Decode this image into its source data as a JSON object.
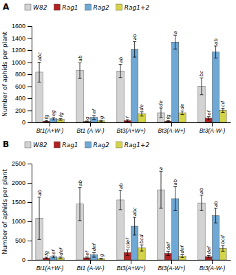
{
  "chart_data": [
    {
      "type": "bar",
      "title": "A",
      "y_label": "Number of aphids per plant",
      "categories": [
        "Bt1(A+W-)",
        "Bt1 (A-W-)",
        "Bt3(A+W+)",
        "Bt3(A-W+)",
        "Bt3(A-W-)"
      ],
      "series": [
        {
          "name": "W82",
          "color": "#d3d3d3",
          "values": [
            835,
            860,
            855,
            160,
            600
          ],
          "errors": [
            165,
            130,
            110,
            80,
            140
          ],
          "annotations": [
            "abc",
            "ab",
            "ab",
            "de",
            "bc"
          ]
        },
        {
          "name": "Rag1",
          "color": "#b22222",
          "values": [
            20,
            15,
            30,
            20,
            70
          ],
          "errors": [
            10,
            8,
            15,
            8,
            25
          ],
          "annotations": [
            "fg",
            "g",
            "f",
            "fg",
            "ef"
          ]
        },
        {
          "name": "Rag2",
          "color": "#6fa8d5",
          "values": [
            60,
            85,
            1215,
            1335,
            1170
          ],
          "errors": [
            20,
            35,
            130,
            115,
            100
          ],
          "annotations": [
            "eg",
            "ef",
            "ab",
            "a",
            "ab"
          ]
        },
        {
          "name": "Rag1+2",
          "color": "#d4d44a",
          "values": [
            50,
            25,
            140,
            160,
            200
          ],
          "errors": [
            15,
            10,
            35,
            30,
            35
          ],
          "annotations": [
            "fg",
            "g",
            "de",
            "de",
            "cd"
          ]
        }
      ],
      "ylim": [
        0,
        1600
      ],
      "yticks": [
        0,
        200,
        400,
        600,
        800,
        1000,
        1200,
        1400,
        1600
      ],
      "grid": false,
      "legend": "top"
    },
    {
      "type": "bar",
      "title": "B",
      "y_label": "Number of aphids per plant",
      "categories": [
        "Bt1(A+W-)",
        "Bt1 (A-W-)",
        "Bt3(A+W+)",
        "Bt3(A-W+)",
        "Bt3(A-W-)"
      ],
      "series": [
        {
          "name": "W82",
          "color": "#d3d3d3",
          "values": [
            1080,
            1450,
            1555,
            1820,
            1480
          ],
          "errors": [
            550,
            430,
            250,
            480,
            200
          ],
          "annotations": [
            "ab",
            "ab",
            "ab",
            "a",
            "ab"
          ]
        },
        {
          "name": "Rag1",
          "color": "#b22222",
          "values": [
            50,
            55,
            190,
            170,
            85
          ],
          "errors": [
            20,
            20,
            70,
            55,
            30
          ],
          "annotations": [
            "fg",
            "ef",
            "cdef",
            "def",
            "def"
          ]
        },
        {
          "name": "Rag2",
          "color": "#6fa8d5",
          "values": [
            80,
            130,
            875,
            1590,
            1150
          ],
          "errors": [
            25,
            60,
            230,
            310,
            190
          ],
          "annotations": [
            "ef",
            "def",
            "abc",
            "ab",
            "ab"
          ]
        },
        {
          "name": "Rag1+2",
          "color": "#d4d44a",
          "values": [
            55,
            30,
            310,
            100,
            300
          ],
          "errors": [
            20,
            10,
            80,
            35,
            75
          ],
          "annotations": [
            "def",
            "g",
            "bcd",
            "def",
            "bcd"
          ]
        }
      ],
      "ylim": [
        0,
        2500
      ],
      "yticks": [
        0,
        500,
        1000,
        1500,
        2000,
        2500
      ],
      "grid": false,
      "legend": "top"
    }
  ]
}
